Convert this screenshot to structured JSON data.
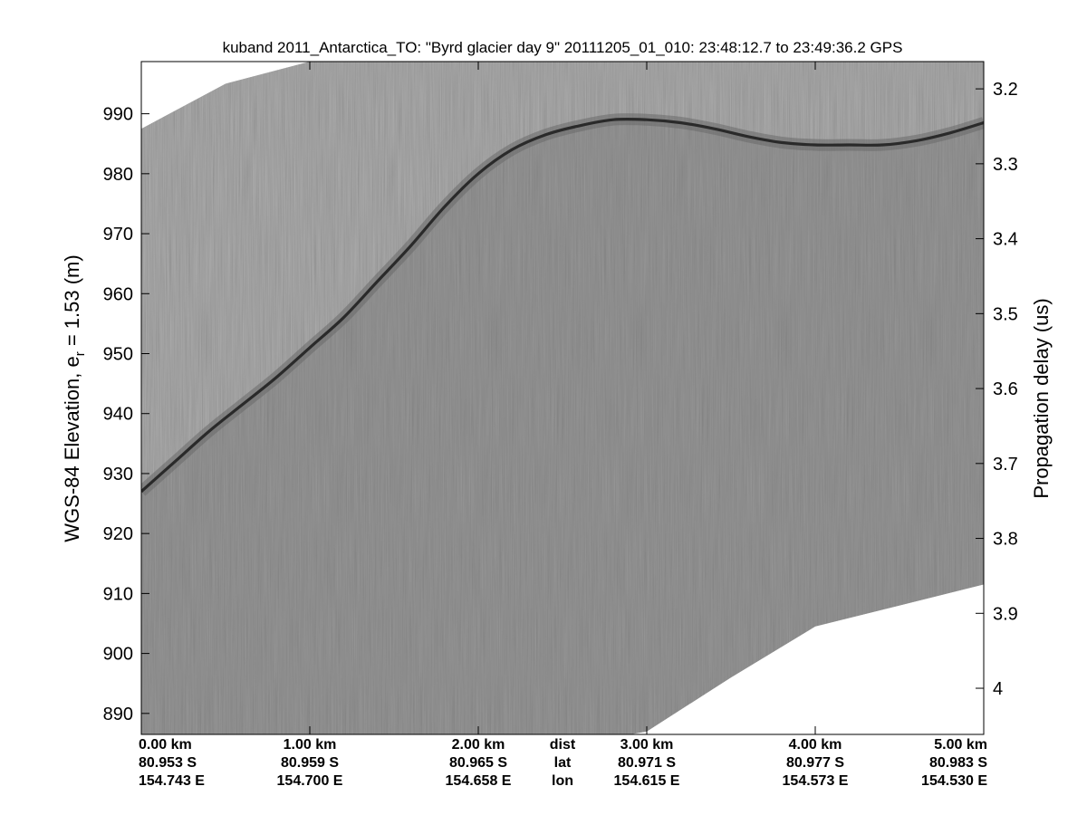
{
  "chart_data": {
    "type": "heatmap",
    "title": "kuband 2011_Antarctica_TO: \"Byrd glacier day 9\"  20111205_01_010: 23:48:12.7 to 23:49:36.2 GPS",
    "ylabel_main": "WGS-84 Elevation, e",
    "ylabel_sub": "r",
    "ylabel_tail": " = 1.53 (m)",
    "y2label": "Propagation delay (us)",
    "xlim_km": [
      0,
      5
    ],
    "ylim": [
      886.5,
      998.7
    ],
    "y2lim": [
      3.1636,
      4.0616
    ],
    "grid": false,
    "colormap": "grayscale",
    "yticks": [
      890,
      900,
      910,
      920,
      930,
      940,
      950,
      960,
      970,
      980,
      990
    ],
    "y2ticks": [
      {
        "value": 3.2,
        "label": "3.2"
      },
      {
        "value": 3.3,
        "label": "3.3"
      },
      {
        "value": 3.4,
        "label": "3.4"
      },
      {
        "value": 3.5,
        "label": "3.5"
      },
      {
        "value": 3.6,
        "label": "3.6"
      },
      {
        "value": 3.7,
        "label": "3.7"
      },
      {
        "value": 3.8,
        "label": "3.8"
      },
      {
        "value": 3.9,
        "label": "3.9"
      },
      {
        "value": 4.0,
        "label": "4"
      }
    ],
    "xticks": [
      {
        "km": 0,
        "dist": "0.00 km",
        "lat": "80.953 S",
        "lon": "154.743 E"
      },
      {
        "km": 1,
        "dist": "1.00 km",
        "lat": "80.959 S",
        "lon": "154.700 E"
      },
      {
        "km": 2,
        "dist": "2.00 km",
        "lat": "80.965 S",
        "lon": "154.658 E"
      },
      {
        "km": 3,
        "dist": "3.00 km",
        "lat": "80.971 S",
        "lon": "154.615 E"
      },
      {
        "km": 4,
        "dist": "4.00 km",
        "lat": "80.977 S",
        "lon": "154.573 E"
      },
      {
        "km": 5,
        "dist": "5.00 km",
        "lat": "80.983 S",
        "lon": "154.530 E"
      }
    ],
    "row_legend": {
      "km": 2.5,
      "dist": "dist",
      "lat": "lat",
      "lon": "lon"
    },
    "surface_elevation": {
      "x_km": [
        0,
        0.2,
        0.4,
        0.6,
        0.8,
        1.0,
        1.2,
        1.4,
        1.6,
        1.8,
        2.0,
        2.2,
        2.4,
        2.6,
        2.8,
        3.0,
        3.2,
        3.4,
        3.6,
        3.8,
        4.0,
        4.2,
        4.4,
        4.6,
        4.8,
        5.0
      ],
      "elev_m": [
        927,
        932,
        937,
        941.5,
        946,
        951,
        956,
        962,
        968,
        974.5,
        980,
        984,
        986.5,
        988,
        989,
        989,
        988.5,
        987.5,
        986.2,
        985.2,
        984.8,
        984.8,
        984.8,
        985.5,
        986.8,
        988.5
      ]
    },
    "data_top": {
      "x_km": [
        0,
        0.5,
        1.0,
        1.5,
        2.0,
        2.5,
        3.0,
        3.5,
        4.0,
        4.5,
        5.0
      ],
      "elev_m": [
        987.5,
        995,
        998.7,
        998.7,
        998.7,
        998.7,
        998.7,
        998.7,
        998.7,
        998.7,
        998.7
      ]
    },
    "data_bottom": {
      "x_km": [
        0,
        2.9,
        3.0,
        3.5,
        4.0,
        4.5,
        5.0
      ],
      "elev_m": [
        886.5,
        886.5,
        887,
        896,
        904.5,
        908,
        911.5
      ]
    }
  }
}
